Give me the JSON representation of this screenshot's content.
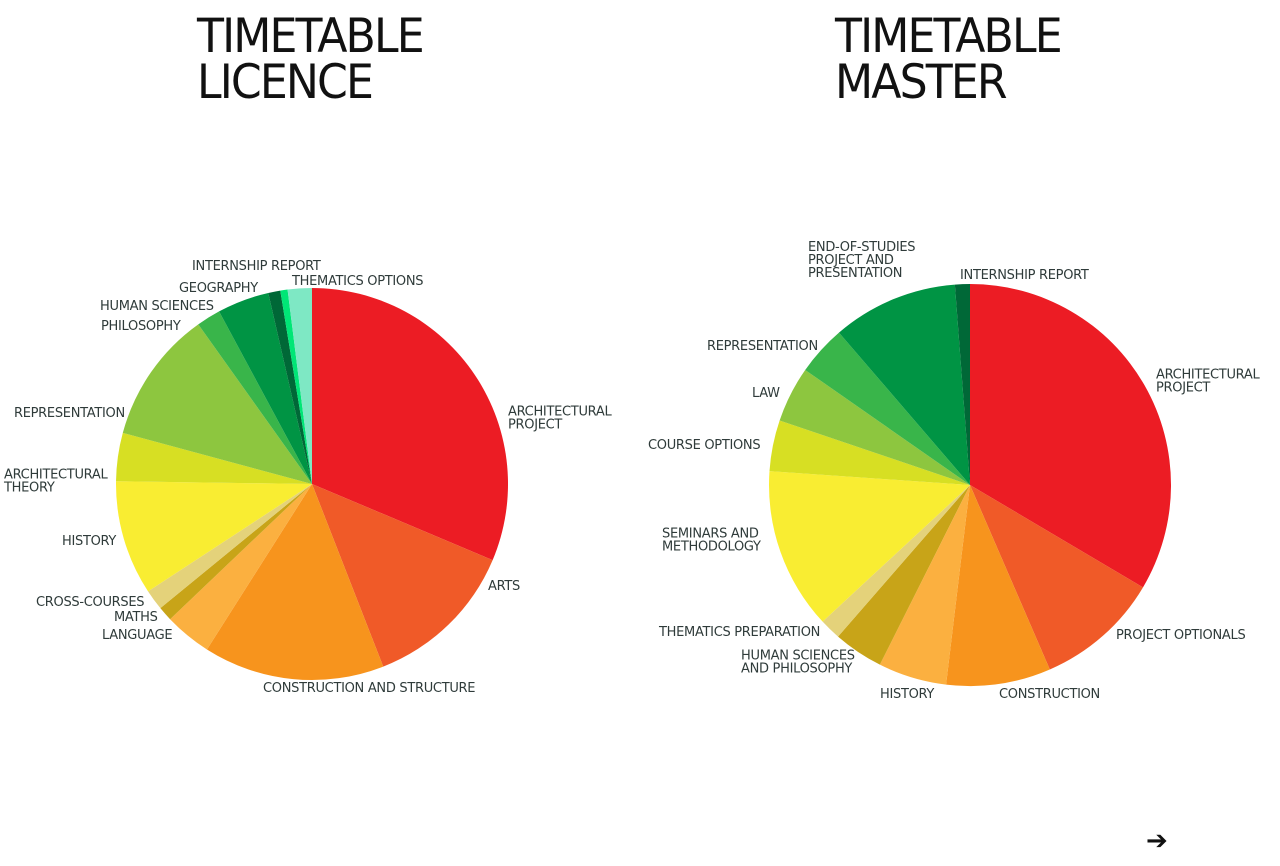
{
  "titles": {
    "left": {
      "line1": "TIMETABLE",
      "line2": "LICENCE"
    },
    "right": {
      "line1": "TIMETABLE",
      "line2": "MASTER"
    }
  },
  "nav": {
    "next_arrow": "➔"
  },
  "chart_data": [
    {
      "type": "pie",
      "title": "TIMETABLE LICENCE",
      "slices": [
        {
          "label": [
            "ARCHITECTURAL",
            "PROJECT"
          ],
          "value": 31.5,
          "color": "#ec1c24"
        },
        {
          "label": [
            "ARTS"
          ],
          "value": 12.8,
          "color": "#f05a28"
        },
        {
          "label": [
            "CONSTRUCTION AND STRUCTURE"
          ],
          "value": 15.0,
          "color": "#f7941d"
        },
        {
          "label": [
            "LANGUAGE"
          ],
          "value": 3.9,
          "color": "#fbb040"
        },
        {
          "label": [
            "MATHS"
          ],
          "value": 1.2,
          "color": "#c8a418"
        },
        {
          "label": [
            "CROSS-COURSES"
          ],
          "value": 1.7,
          "color": "#e4d27a"
        },
        {
          "label": [
            "HISTORY"
          ],
          "value": 9.5,
          "color": "#f9ed32"
        },
        {
          "label": [
            "ARCHITECTURAL",
            "THEORY"
          ],
          "value": 4.0,
          "color": "#d7df23"
        },
        {
          "label": [
            "REPRESENTATION"
          ],
          "value": 11.0,
          "color": "#8dc63f"
        },
        {
          "label": [
            "PHILOSOPHY"
          ],
          "value": 2.0,
          "color": "#39b54a"
        },
        {
          "label": [
            "HUMAN SCIENCES"
          ],
          "value": 4.3,
          "color": "#009444"
        },
        {
          "label": [
            "GEOGRAPHY"
          ],
          "value": 1.0,
          "color": "#006837"
        },
        {
          "label": [
            "INTERNSHIP REPORT"
          ],
          "value": 0.6,
          "color": "#00e676"
        },
        {
          "label": [
            "THEMATICS OPTIONS"
          ],
          "value": 2.0,
          "color": "#7ee8c4"
        }
      ]
    },
    {
      "type": "pie",
      "title": "TIMETABLE MASTER",
      "slices": [
        {
          "label": [
            "ARCHITECTURAL",
            "PROJECT"
          ],
          "value": 33.5,
          "color": "#ec1c24"
        },
        {
          "label": [
            "PROJECT OPTIONALS"
          ],
          "value": 10.0,
          "color": "#f05a28"
        },
        {
          "label": [
            "CONSTRUCTION"
          ],
          "value": 8.4,
          "color": "#f7941d"
        },
        {
          "label": [
            "HISTORY"
          ],
          "value": 5.5,
          "color": "#fbb040"
        },
        {
          "label": [
            "HUMAN SCIENCES",
            "AND PHILOSOPHY"
          ],
          "value": 4.0,
          "color": "#c8a418"
        },
        {
          "label": [
            "THEMATICS PREPARATION"
          ],
          "value": 1.7,
          "color": "#e4d27a"
        },
        {
          "label": [
            "SEMINARS AND",
            "METHODOLOGY"
          ],
          "value": 13.0,
          "color": "#f9ed32"
        },
        {
          "label": [
            "COURSE OPTIONS"
          ],
          "value": 4.1,
          "color": "#d7df23"
        },
        {
          "label": [
            "LAW"
          ],
          "value": 4.5,
          "color": "#8dc63f"
        },
        {
          "label": [
            "REPRESENTATION"
          ],
          "value": 4.0,
          "color": "#39b54a"
        },
        {
          "label": [
            "END-OF-STUDIES",
            "PROJECT AND",
            "PRESENTATION"
          ],
          "value": 10.1,
          "color": "#009444"
        },
        {
          "label": [
            "INTERNSHIP REPORT"
          ],
          "value": 1.2,
          "color": "#006837"
        }
      ]
    }
  ]
}
